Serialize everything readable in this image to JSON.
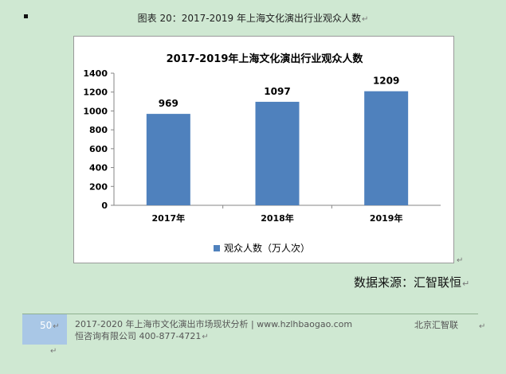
{
  "caption": "图表 20：2017-2019 年上海文化演出行业观众人数",
  "paragraph_mark": "↵",
  "chart_data": {
    "type": "bar",
    "title": "2017-2019年上海文化演出行业观众人数",
    "categories": [
      "2017年",
      "2018年",
      "2019年"
    ],
    "series": [
      {
        "name": "观众人数（万人次）",
        "values": [
          969,
          1097,
          1209
        ],
        "color": "#4f81bd"
      }
    ],
    "data_labels": [
      "969",
      "1097",
      "1209"
    ],
    "ylim": [
      0,
      1400
    ],
    "yticks": [
      0,
      200,
      400,
      600,
      800,
      1000,
      1200,
      1400
    ],
    "ytick_labels": [
      "0",
      "200",
      "400",
      "600",
      "800",
      "1000",
      "1200",
      "1400"
    ],
    "legend_position": "bottom",
    "grid": false
  },
  "source": "数据来源：汇智联恒",
  "footer": {
    "page_number": "50",
    "line1": "2017-2020 年上海市文化演出市场现状分析 | www.hzlhbaogao.com",
    "line2": "恒咨询有限公司  400-877-4721",
    "right": "北京汇智联"
  },
  "colors": {
    "background": "#cfe8d2",
    "bar": "#4f81bd",
    "page_box": "#a9c7e6"
  }
}
